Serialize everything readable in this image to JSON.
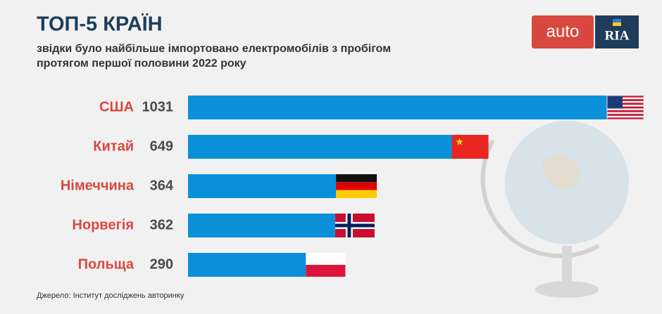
{
  "chart_data": {
    "type": "bar",
    "orientation": "horizontal",
    "title": "ТОП-5 КРАЇН",
    "subtitle": [
      "звідки було найбільше імпортовано електромобілів з пробігом",
      "протягом першої половини 2022 року"
    ],
    "categories": [
      "США",
      "Китай",
      "Німеччина",
      "Норвегія",
      "Польща"
    ],
    "values": [
      1031,
      649,
      364,
      362,
      290
    ],
    "color": "#0a90d9",
    "source": "Джерело: Інститут досліджень авторинку",
    "logo": [
      "auto",
      "RIA"
    ]
  }
}
